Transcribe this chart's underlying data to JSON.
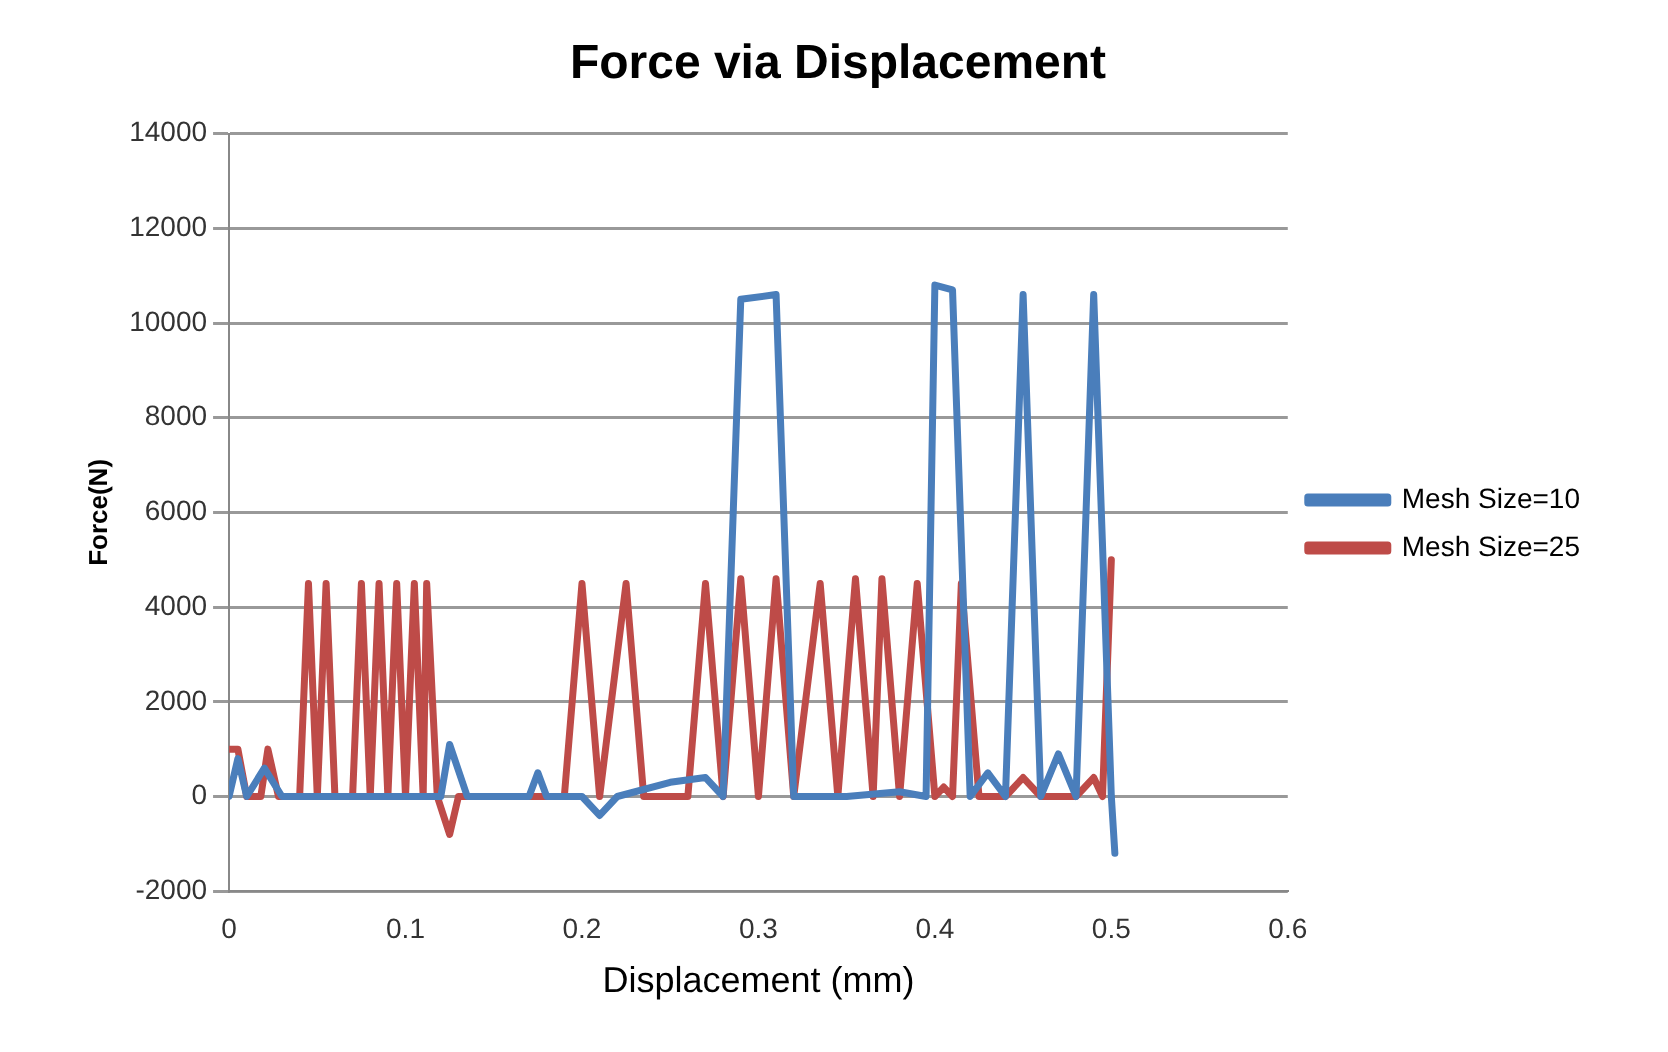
{
  "chart_data": {
    "type": "line",
    "title": "Force via Displacement",
    "xlabel": "Displacement (mm)",
    "ylabel": "Force(N)",
    "xlim": [
      0,
      0.6
    ],
    "xticks": [
      0,
      0.1,
      0.2,
      0.3,
      0.4,
      0.5,
      0.6
    ],
    "ylim": [
      -2000,
      14000
    ],
    "yticks": [
      -2000,
      0,
      2000,
      4000,
      6000,
      8000,
      10000,
      12000,
      14000
    ],
    "grid": "y",
    "legend": "right",
    "marker": "none",
    "line_style": "solid",
    "series": [
      {
        "name": "Mesh Size=10",
        "color": "#4a7ebb",
        "x": [
          0,
          0.005,
          0.01,
          0.02,
          0.03,
          0.05,
          0.1,
          0.12,
          0.125,
          0.135,
          0.17,
          0.175,
          0.18,
          0.2,
          0.21,
          0.22,
          0.25,
          0.27,
          0.28,
          0.29,
          0.31,
          0.32,
          0.35,
          0.38,
          0.395,
          0.4,
          0.41,
          0.42,
          0.43,
          0.44,
          0.45,
          0.46,
          0.47,
          0.48,
          0.49,
          0.5,
          0.502
        ],
        "values": [
          0,
          800,
          0,
          600,
          0,
          0,
          0,
          0,
          1100,
          0,
          0,
          500,
          0,
          0,
          -400,
          0,
          300,
          400,
          0,
          10500,
          10600,
          0,
          0,
          100,
          0,
          10800,
          10700,
          0,
          500,
          0,
          10600,
          0,
          900,
          0,
          10600,
          0,
          -1200
        ]
      },
      {
        "name": "Mesh Size=25",
        "color": "#be4b48",
        "x": [
          0,
          0.005,
          0.01,
          0.018,
          0.022,
          0.028,
          0.04,
          0.045,
          0.05,
          0.055,
          0.06,
          0.07,
          0.075,
          0.08,
          0.085,
          0.09,
          0.095,
          0.1,
          0.105,
          0.11,
          0.112,
          0.118,
          0.125,
          0.13,
          0.19,
          0.2,
          0.21,
          0.225,
          0.235,
          0.26,
          0.27,
          0.28,
          0.29,
          0.3,
          0.31,
          0.32,
          0.335,
          0.345,
          0.355,
          0.365,
          0.37,
          0.38,
          0.39,
          0.4,
          0.405,
          0.41,
          0.415,
          0.425,
          0.44,
          0.45,
          0.46,
          0.48,
          0.49,
          0.495,
          0.5
        ],
        "values": [
          1000,
          1000,
          0,
          0,
          1000,
          0,
          0,
          4500,
          0,
          4500,
          0,
          0,
          4500,
          0,
          4500,
          0,
          4500,
          0,
          4500,
          0,
          4500,
          0,
          -800,
          0,
          0,
          4500,
          0,
          4500,
          0,
          0,
          4500,
          0,
          4600,
          0,
          4600,
          0,
          4500,
          0,
          4600,
          0,
          4600,
          0,
          4500,
          0,
          200,
          0,
          4500,
          0,
          0,
          400,
          0,
          0,
          400,
          0,
          5000
        ]
      }
    ]
  }
}
